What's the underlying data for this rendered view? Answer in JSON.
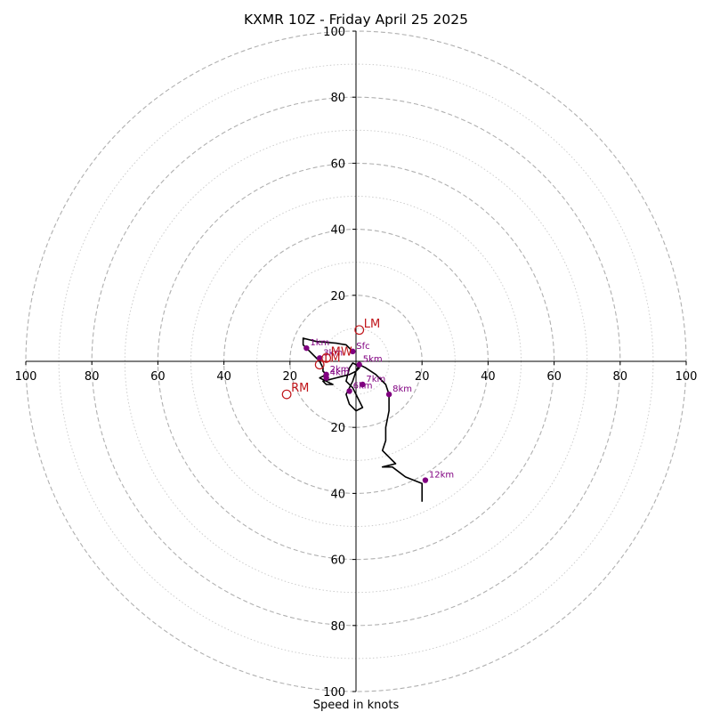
{
  "chart_data": {
    "type": "scatter",
    "title": "KXMR 10Z - Friday April 25 2025",
    "xlabel": "Speed in knots",
    "ylabel": "",
    "xlim": [
      -100,
      100
    ],
    "ylim": [
      -100,
      100
    ],
    "grid": "concentric rings every 10 knots (dashed at multiples of 20, dotted between)",
    "tick_labels": {
      "x": [
        "100",
        "80",
        "60",
        "40",
        "20",
        "20",
        "40",
        "60",
        "80",
        "100"
      ],
      "y": [
        "100",
        "80",
        "60",
        "40",
        "20",
        "20",
        "40",
        "60",
        "80",
        "100"
      ]
    },
    "tick_values": {
      "x": [
        -100,
        -80,
        -60,
        -40,
        -20,
        20,
        40,
        60,
        80,
        100
      ],
      "y": [
        100,
        80,
        60,
        40,
        20,
        -20,
        -40,
        -60,
        -80,
        -100
      ]
    },
    "hodograph": {
      "u": [
        -1,
        -3,
        -6,
        -12,
        -16,
        -16,
        -15,
        -11,
        -10,
        -10,
        -9,
        -11,
        -9,
        -7,
        -9,
        -10,
        -6,
        -2,
        0,
        1,
        0,
        -1,
        -2,
        -3,
        -1,
        1,
        2,
        0,
        -2,
        -3,
        -2,
        -1,
        0,
        1,
        3,
        6,
        9,
        10,
        10,
        9,
        9,
        9,
        8,
        12,
        8,
        11,
        15,
        20,
        20
      ],
      "v": [
        3,
        5,
        5.5,
        6,
        7,
        5,
        4,
        0,
        -2,
        -3,
        -4,
        -5,
        -6,
        -7,
        -7,
        -6,
        -5,
        -4,
        -3,
        -2,
        -1,
        -0.5,
        -2,
        -6,
        -8,
        -12,
        -14,
        -15,
        -13,
        -10,
        -8,
        -6,
        -3,
        -1,
        -2,
        -4,
        -7,
        -10,
        -15,
        -20,
        -23,
        -24,
        -27,
        -31,
        -32,
        -32,
        -35,
        -37,
        -42.5
      ]
    },
    "height_markers": [
      {
        "label": "Sfc",
        "u": -1,
        "v": 3
      },
      {
        "label": "1km",
        "u": -15,
        "v": 4
      },
      {
        "label": "2km",
        "u": -9,
        "v": -4
      },
      {
        "label": "3km",
        "u": -11,
        "v": 1
      },
      {
        "label": "4km",
        "u": -9,
        "v": -5
      },
      {
        "label": "5km",
        "u": 1,
        "v": -1
      },
      {
        "label": "6km",
        "u": -2,
        "v": -9
      },
      {
        "label": "7km",
        "u": 2,
        "v": -7
      },
      {
        "label": "8km",
        "u": 10,
        "v": -10
      },
      {
        "label": "12km",
        "u": 21,
        "v": -36
      }
    ],
    "storm_motions": [
      {
        "label": "LM",
        "u": 1,
        "v": 9.5
      },
      {
        "label": "RM",
        "u": -21,
        "v": -10
      },
      {
        "label": "MW",
        "u": -9,
        "v": 1
      },
      {
        "label": "LM",
        "u": -11,
        "v": -1
      }
    ],
    "colors": {
      "hodograph": "#000000",
      "markers": "#800080",
      "storm_motion": "#c0151a",
      "rings": "#b0b0b0",
      "axes": "#000000"
    }
  }
}
